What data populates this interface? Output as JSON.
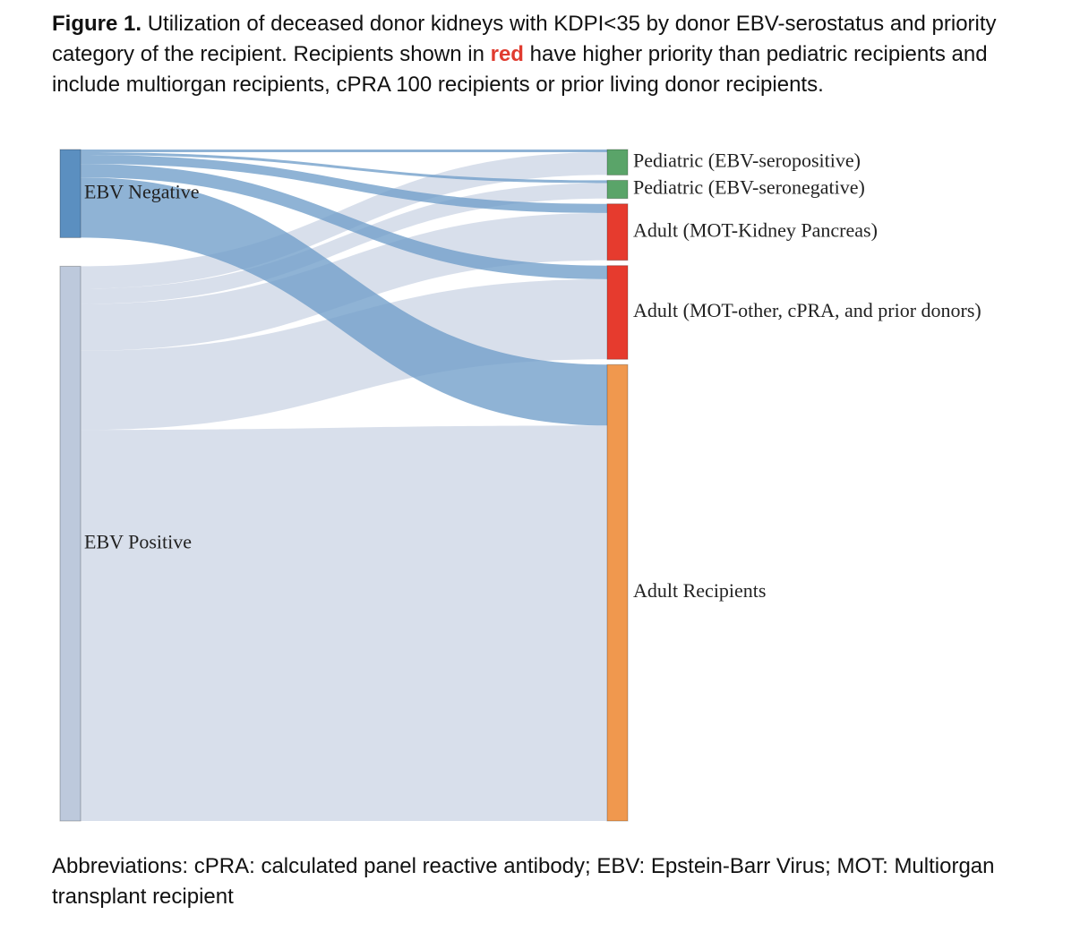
{
  "caption": {
    "label": "Figure 1.",
    "text_1": " Utilization of deceased donor kidneys with KDPI<35 by donor EBV-serostatus and priority category of the recipient. Recipients shown in ",
    "red_word": "red",
    "text_2": " have higher priority than pediatric recipients and include multiorgan recipients, cPRA 100 recipients or prior living donor recipients."
  },
  "footer": {
    "text": "Abbreviations: cPRA: calculated panel reactive antibody; EBV: Epstein-Barr Virus; MOT: Multiorgan transplant recipient"
  },
  "colors": {
    "ebv_negative": "#5b8fc0",
    "ebv_positive": "#bdc9dc",
    "pediatric": "#5aa469",
    "priority_adult": "#e63b2e",
    "adult": "#f0984e",
    "link_negative": "#6f9dc9",
    "link_positive": "#c9d3e3"
  },
  "nodes": {
    "sources": [
      {
        "id": "neg",
        "label": "EBV Negative",
        "color": "#5b8fc0"
      },
      {
        "id": "pos",
        "label": "EBV Positive",
        "color": "#bdc9dc"
      }
    ],
    "targets": [
      {
        "id": "ped_pos",
        "label": "Pediatric (EBV-seropositive)",
        "color": "#5aa469"
      },
      {
        "id": "ped_neg",
        "label": "Pediatric (EBV-seronegative)",
        "color": "#5aa469"
      },
      {
        "id": "mot_kp",
        "label": "Adult (MOT-Kidney Pancreas)",
        "color": "#e63b2e"
      },
      {
        "id": "mot_other",
        "label": "Adult (MOT-other, cPRA, and prior donors)",
        "color": "#e63b2e"
      },
      {
        "id": "adult",
        "label": "Adult Recipients",
        "color": "#f0984e"
      }
    ]
  },
  "flows": [
    {
      "source": "neg",
      "target": "ped_pos",
      "value": 3
    },
    {
      "source": "neg",
      "target": "ped_neg",
      "value": 3
    },
    {
      "source": "neg",
      "target": "mot_kp",
      "value": 10
    },
    {
      "source": "neg",
      "target": "mot_other",
      "value": 15
    },
    {
      "source": "neg",
      "target": "adult",
      "value": 67
    },
    {
      "source": "pos",
      "target": "ped_pos",
      "value": 25
    },
    {
      "source": "pos",
      "target": "ped_neg",
      "value": 17
    },
    {
      "source": "pos",
      "target": "mot_kp",
      "value": 52
    },
    {
      "source": "pos",
      "target": "mot_other",
      "value": 88
    },
    {
      "source": "pos",
      "target": "adult",
      "value": 435
    }
  ]
}
